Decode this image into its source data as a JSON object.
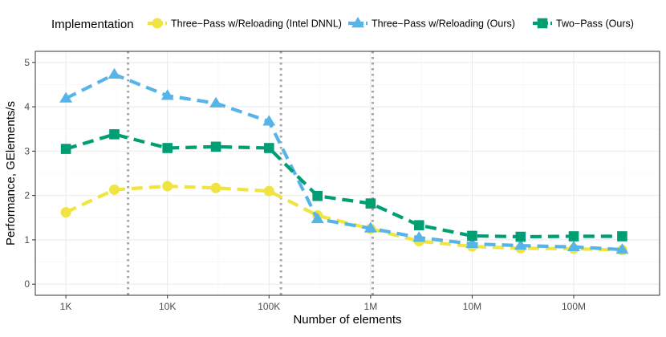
{
  "chart_data": {
    "type": "line",
    "title": "",
    "xlabel": "Number of elements",
    "ylabel": "Performance, GElements/s",
    "x_scale": "log10",
    "xlim": [
      500,
      700000000
    ],
    "ylim": [
      -0.25,
      5.25
    ],
    "x_ticks": [
      {
        "value": 1000,
        "label": "1K"
      },
      {
        "value": 10000,
        "label": "10K"
      },
      {
        "value": 100000,
        "label": "100K"
      },
      {
        "value": 1000000,
        "label": "1M"
      },
      {
        "value": 10000000,
        "label": "10M"
      },
      {
        "value": 100000000,
        "label": "100M"
      }
    ],
    "y_ticks": [
      {
        "value": 0,
        "label": "0"
      },
      {
        "value": 1,
        "label": "1"
      },
      {
        "value": 2,
        "label": "2"
      },
      {
        "value": 3,
        "label": "3"
      },
      {
        "value": 4,
        "label": "4"
      },
      {
        "value": 5,
        "label": "5"
      }
    ],
    "vertical_reference_lines": [
      4096,
      131072,
      1048576
    ],
    "grid": true,
    "legend": {
      "title": "Implementation",
      "placement": "top"
    },
    "x": [
      1000,
      3000,
      10000,
      30000,
      100000,
      300000,
      1000000,
      3000000,
      10000000,
      30000000,
      100000000,
      300000000
    ],
    "series": [
      {
        "name": "Three−Pass w/Reloading (Intel DNNL)",
        "marker": "circle",
        "color": "#F0E442",
        "values": [
          1.62,
          2.13,
          2.21,
          2.17,
          2.1,
          1.55,
          1.25,
          0.97,
          0.85,
          0.81,
          0.8,
          0.77
        ]
      },
      {
        "name": "Three−Pass w/Reloading (Ours)",
        "marker": "triangle",
        "color": "#56B4E9",
        "values": [
          4.19,
          4.73,
          4.25,
          4.08,
          3.67,
          1.47,
          1.26,
          1.05,
          0.91,
          0.87,
          0.84,
          0.78
        ]
      },
      {
        "name": "Two−Pass (Ours)",
        "marker": "square",
        "color": "#009E73",
        "values": [
          3.05,
          3.38,
          3.07,
          3.1,
          3.07,
          1.99,
          1.82,
          1.33,
          1.09,
          1.07,
          1.08,
          1.08
        ]
      }
    ]
  },
  "colors": {
    "panel_background": "#FFFFFF",
    "panel_border": "#333333",
    "grid_major": "#EBEBEB",
    "grid_minor": "#F5F5F5",
    "reference_line": "#A6A6A6",
    "axis_text": "#4D4D4D",
    "title_text": "#000000"
  }
}
